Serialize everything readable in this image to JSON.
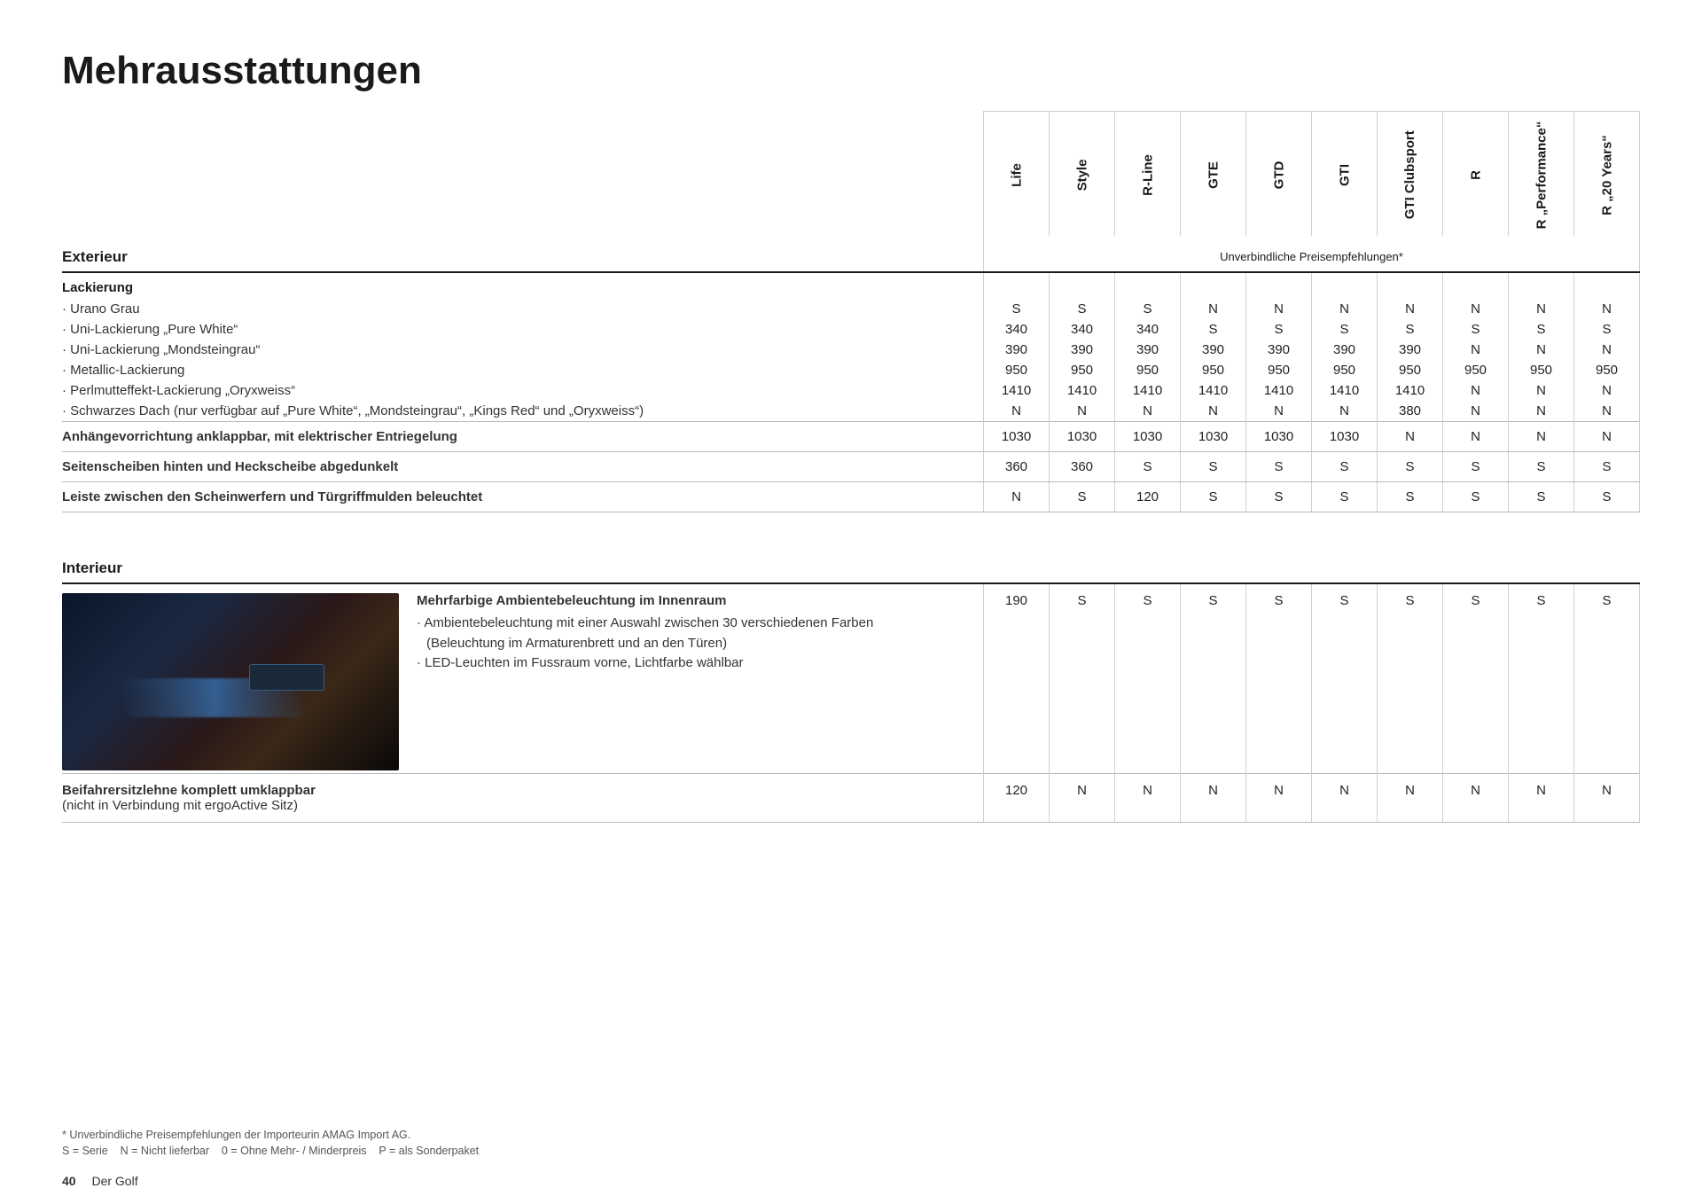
{
  "page_title": "Mehrausstattungen",
  "columns": [
    "Life",
    "Style",
    "R-Line",
    "GTE",
    "GTD",
    "GTI",
    "GTI\nClubsport",
    "R",
    "R „Performance“",
    "R „20 Years“"
  ],
  "price_hint": "Unverbindliche Preisempfehlungen*",
  "section_exterior": "Exterieur",
  "group_lackierung": "Lackierung",
  "rows_lack": [
    {
      "label": "Urano Grau",
      "vals": [
        "S",
        "S",
        "S",
        "N",
        "N",
        "N",
        "N",
        "N",
        "N",
        "N"
      ]
    },
    {
      "label": "Uni-Lackierung „Pure White“",
      "vals": [
        "340",
        "340",
        "340",
        "S",
        "S",
        "S",
        "S",
        "S",
        "S",
        "S"
      ]
    },
    {
      "label": "Uni-Lackierung „Mondsteingrau“",
      "vals": [
        "390",
        "390",
        "390",
        "390",
        "390",
        "390",
        "390",
        "N",
        "N",
        "N"
      ]
    },
    {
      "label": "Metallic-Lackierung",
      "vals": [
        "950",
        "950",
        "950",
        "950",
        "950",
        "950",
        "950",
        "950",
        "950",
        "950"
      ]
    },
    {
      "label": "Perlmutteffekt-Lackierung „Oryxweiss“",
      "vals": [
        "1410",
        "1410",
        "1410",
        "1410",
        "1410",
        "1410",
        "1410",
        "N",
        "N",
        "N"
      ]
    },
    {
      "label": "Schwarzes Dach (nur verfügbar auf „Pure White“, „Mondsteingrau“, „Kings Red“ und „Oryxweiss“)",
      "vals": [
        "N",
        "N",
        "N",
        "N",
        "N",
        "N",
        "380",
        "N",
        "N",
        "N"
      ]
    }
  ],
  "row_anhaenger": {
    "label": "Anhängevorrichtung anklappbar, mit elektrischer Entriegelung",
    "vals": [
      "1030",
      "1030",
      "1030",
      "1030",
      "1030",
      "1030",
      "N",
      "N",
      "N",
      "N"
    ]
  },
  "row_scheiben": {
    "label": "Seitenscheiben hinten und Heckscheibe abgedunkelt",
    "vals": [
      "360",
      "360",
      "S",
      "S",
      "S",
      "S",
      "S",
      "S",
      "S",
      "S"
    ]
  },
  "row_leiste": {
    "label": "Leiste zwischen den Scheinwerfern und Türgriffmulden beleuchtet",
    "vals": [
      "N",
      "S",
      "120",
      "S",
      "S",
      "S",
      "S",
      "S",
      "S",
      "S"
    ]
  },
  "section_interior": "Interieur",
  "row_ambient": {
    "title": "Mehrfarbige Ambientebeleuchtung im Innenraum",
    "lines": [
      "Ambientebeleuchtung mit einer Auswahl zwischen 30 verschiedenen Farben",
      "(Beleuchtung im Armaturenbrett und an den Türen)",
      "LED-Leuchten im Fussraum vorne, Lichtfarbe wählbar"
    ],
    "vals": [
      "190",
      "S",
      "S",
      "S",
      "S",
      "S",
      "S",
      "S",
      "S",
      "S"
    ]
  },
  "row_beifahrer": {
    "main": "Beifahrersitzlehne komplett umklappbar",
    "sub": "(nicht in Verbindung mit ergoActive Sitz)",
    "vals": [
      "120",
      "N",
      "N",
      "N",
      "N",
      "N",
      "N",
      "N",
      "N",
      "N"
    ]
  },
  "footnote1": "* Unverbindliche Preisempfehlungen der Importeurin AMAG Import AG.",
  "footnote2": "S = Serie    N = Nicht lieferbar    0 = Ohne Mehr- / Minderpreis    P = als Sonderpaket",
  "page_number": "40",
  "model_name": "Der Golf"
}
